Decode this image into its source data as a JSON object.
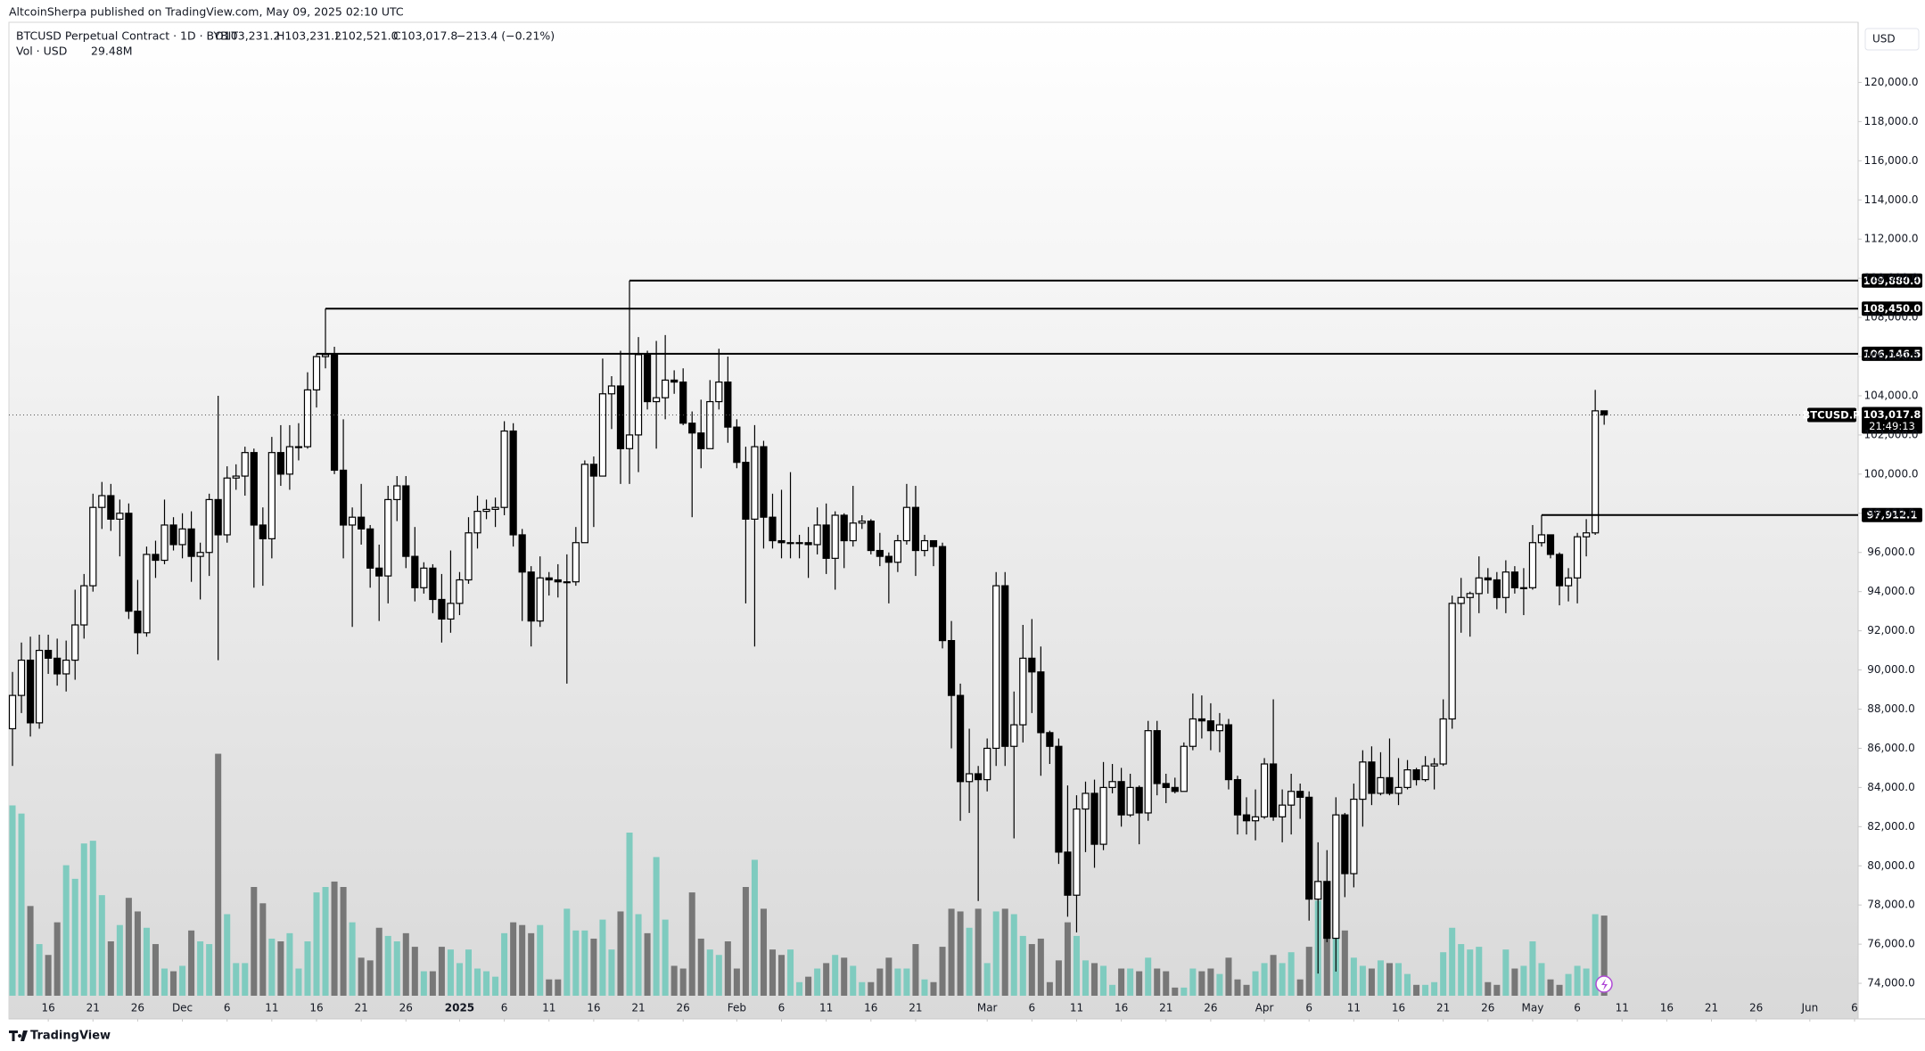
{
  "chart_data": {
    "type": "candlestick",
    "title": "AltcoinSherpa published on TradingView.com, May 09, 2025 02:10 UTC",
    "symbol": "BTCUSD Perpetual Contract · 1D · BYBIT",
    "ohlc_labels": [
      "O103,231.2",
      "H103,231.2",
      "L102,521.0",
      "C103,017.8",
      "−213.4 (−0.21%)"
    ],
    "currency": "USD",
    "brand": "TradingView",
    "grid": false,
    "up_color": "#ffffff",
    "down_color": "#000000",
    "wick_color": "#000000",
    "xlim": [
      -0.4,
      206.4
    ],
    "ylim": [
      73230,
      123070
    ],
    "xticks": [
      {
        "value": 4,
        "label": "16"
      },
      {
        "value": 9,
        "label": "21"
      },
      {
        "value": 14,
        "label": "26"
      },
      {
        "value": 19,
        "label": "Dec"
      },
      {
        "value": 24,
        "label": "6"
      },
      {
        "value": 29,
        "label": "11"
      },
      {
        "value": 34,
        "label": "16"
      },
      {
        "value": 39,
        "label": "21"
      },
      {
        "value": 44,
        "label": "26"
      },
      {
        "value": 50,
        "label": "2025"
      },
      {
        "value": 55,
        "label": "6"
      },
      {
        "value": 60,
        "label": "11"
      },
      {
        "value": 65,
        "label": "16"
      },
      {
        "value": 70,
        "label": "21"
      },
      {
        "value": 75,
        "label": "26"
      },
      {
        "value": 81,
        "label": "Feb"
      },
      {
        "value": 86,
        "label": "6"
      },
      {
        "value": 91,
        "label": "11"
      },
      {
        "value": 96,
        "label": "16"
      },
      {
        "value": 101,
        "label": "21"
      },
      {
        "value": 109,
        "label": "Mar"
      },
      {
        "value": 114,
        "label": "6"
      },
      {
        "value": 119,
        "label": "11"
      },
      {
        "value": 124,
        "label": "16"
      },
      {
        "value": 129,
        "label": "21"
      },
      {
        "value": 134,
        "label": "26"
      },
      {
        "value": 140,
        "label": "Apr"
      },
      {
        "value": 145,
        "label": "6"
      },
      {
        "value": 150,
        "label": "11"
      },
      {
        "value": 155,
        "label": "16"
      },
      {
        "value": 160,
        "label": "21"
      },
      {
        "value": 165,
        "label": "26"
      },
      {
        "value": 170,
        "label": "May"
      },
      {
        "value": 175,
        "label": "6"
      },
      {
        "value": 180,
        "label": "11"
      },
      {
        "value": 185,
        "label": "16"
      },
      {
        "value": 190,
        "label": "21"
      },
      {
        "value": 195,
        "label": "26"
      },
      {
        "value": 201,
        "label": "Jun"
      },
      {
        "value": 206,
        "label": "6"
      }
    ],
    "yticks": [
      {
        "value": 74000,
        "label": "74,000.0"
      },
      {
        "value": 76000,
        "label": "76,000.0"
      },
      {
        "value": 78000,
        "label": "78,000.0"
      },
      {
        "value": 80000,
        "label": "80,000.0"
      },
      {
        "value": 82000,
        "label": "82,000.0"
      },
      {
        "value": 84000,
        "label": "84,000.0"
      },
      {
        "value": 86000,
        "label": "86,000.0"
      },
      {
        "value": 88000,
        "label": "88,000.0"
      },
      {
        "value": 90000,
        "label": "90,000.0"
      },
      {
        "value": 92000,
        "label": "92,000.0"
      },
      {
        "value": 94000,
        "label": "94,000.0"
      },
      {
        "value": 96000,
        "label": "96,000.0"
      },
      {
        "value": 98000,
        "label": "98,000.0"
      },
      {
        "value": 100000,
        "label": "100,000.0"
      },
      {
        "value": 102000,
        "label": "102,000.0"
      },
      {
        "value": 104000,
        "label": "104,000.0"
      },
      {
        "value": 106000,
        "label": "106,000.0"
      },
      {
        "value": 108000,
        "label": "108,000.0"
      },
      {
        "value": 110000,
        "label": "110,000.0"
      },
      {
        "value": 112000,
        "label": "112,000.0"
      },
      {
        "value": 114000,
        "label": "114,000.0"
      },
      {
        "value": 116000,
        "label": "116,000.0"
      },
      {
        "value": 118000,
        "label": "118,000.0"
      },
      {
        "value": 120000,
        "label": "120,000.0"
      }
    ],
    "levels": [
      {
        "value": 109880,
        "label": "109,880.0"
      },
      {
        "value": 108450,
        "label": "108,450.0"
      },
      {
        "value": 106146.5,
        "label": "106,146.5"
      },
      {
        "value": 97912.1,
        "label": "97,912.1"
      }
    ],
    "last_price": {
      "symbol": "BTCUSD.P",
      "value": 103017.8,
      "label": "103,017.8",
      "countdown": "21:49:13"
    },
    "open": [
      87000,
      88700,
      90500,
      87300,
      91000,
      90600,
      89800,
      90500,
      92300,
      94300,
      98300,
      98900,
      97700,
      98000,
      93000,
      91900,
      95900,
      95600,
      97400,
      96400,
      97200,
      95800,
      96000,
      98700,
      96900,
      99800,
      99900,
      101100,
      97400,
      96700,
      101100,
      100000,
      101400,
      101400,
      104300,
      106000,
      106100,
      100200,
      97400,
      97800,
      97200,
      95200,
      94800,
      98700,
      99400,
      95800,
      94200,
      95200,
      93600,
      92600,
      93400,
      94600,
      97000,
      98100,
      98200,
      98300,
      102200,
      96900,
      95000,
      92500,
      94700,
      94600,
      94500,
      94500,
      96500,
      100500,
      99900,
      104100,
      104500,
      101300,
      102000,
      106100,
      103700,
      103900,
      104800,
      104700,
      102600,
      102100,
      101300,
      103700,
      104700,
      102400,
      100600,
      97700,
      101400,
      97800,
      96600,
      96500,
      96500,
      96500,
      96400,
      97400,
      95700,
      97900,
      96600,
      97500,
      97600,
      96100,
      95800,
      95500,
      96600,
      98300,
      96100,
      96600,
      96300,
      91500,
      88700,
      84300,
      84700,
      84400,
      86000,
      94300,
      86100,
      87200,
      90600,
      89900,
      86800,
      86100,
      80700,
      78500,
      82900,
      83700,
      81100,
      84000,
      84300,
      82600,
      84000,
      82700,
      86900,
      84200,
      84000,
      83800,
      86100,
      87500,
      87400,
      86900,
      87200,
      84400,
      82600,
      82300,
      82500,
      85200,
      82500,
      83100,
      83800,
      83500,
      78300,
      79200,
      76300,
      82600,
      79600,
      83400,
      85300,
      83700,
      84500,
      83700,
      84000,
      84900,
      84400,
      85100,
      85200,
      87500,
      93400,
      93700,
      93900,
      94700,
      94600,
      93700,
      95000,
      94200,
      94200,
      96500,
      96900,
      95900,
      94300,
      94700,
      96800,
      97000,
      103231.2
    ],
    "high": [
      89900,
      91400,
      91700,
      91800,
      91800,
      91600,
      91500,
      94100,
      94900,
      99000,
      99600,
      99500,
      98700,
      98500,
      94600,
      96300,
      96600,
      98700,
      97800,
      98000,
      98100,
      96500,
      99000,
      104000,
      100400,
      100500,
      101400,
      101300,
      98300,
      101900,
      102500,
      102500,
      102600,
      105200,
      106146.5,
      108450,
      106500,
      102800,
      98300,
      99500,
      97400,
      96400,
      99400,
      99900,
      99900,
      97300,
      95500,
      95400,
      94900,
      96100,
      95000,
      97800,
      98900,
      98700,
      98800,
      102700,
      102600,
      97200,
      95300,
      95800,
      95000,
      95400,
      95900,
      97300,
      100700,
      100900,
      105900,
      105000,
      106300,
      109880,
      107000,
      106300,
      106800,
      107100,
      105300,
      105400,
      103200,
      103800,
      104800,
      106400,
      106000,
      102800,
      101400,
      102500,
      101700,
      99000,
      99200,
      100100,
      96900,
      97300,
      98300,
      98500,
      98100,
      98000,
      99400,
      97900,
      97700,
      97000,
      96000,
      96900,
      99500,
      99400,
      96900,
      96600,
      96500,
      92500,
      89300,
      87000,
      85100,
      86500,
      95000,
      95000,
      88900,
      92300,
      92600,
      91200,
      86900,
      86500,
      84100,
      83600,
      84300,
      84400,
      85300,
      85200,
      85000,
      84700,
      84100,
      87400,
      87400,
      84700,
      84500,
      86300,
      88800,
      88700,
      88300,
      87800,
      87500,
      84600,
      83500,
      83900,
      85500,
      88500,
      83900,
      84700,
      84200,
      83800,
      81200,
      80800,
      83500,
      82700,
      84200,
      85900,
      86100,
      85800,
      86500,
      85500,
      85400,
      85000,
      85600,
      85500,
      88500,
      93800,
      94700,
      94000,
      95800,
      95200,
      95000,
      95600,
      95300,
      95200,
      97400,
      97912.1,
      96900,
      96000,
      95200,
      97000,
      97700,
      104300,
      103231.2
    ],
    "low": [
      85100,
      87800,
      86600,
      87000,
      89800,
      89200,
      88900,
      89500,
      91600,
      94000,
      97200,
      97100,
      95800,
      92600,
      90800,
      91700,
      94700,
      95400,
      96100,
      95700,
      94500,
      93600,
      94800,
      90500,
      96500,
      99200,
      98900,
      94200,
      94300,
      95700,
      99400,
      99200,
      100700,
      101300,
      103400,
      105400,
      100000,
      95700,
      92200,
      96400,
      94200,
      92500,
      93400,
      97600,
      95200,
      93500,
      93900,
      92900,
      91400,
      91900,
      92800,
      94400,
      96200,
      97700,
      97300,
      97900,
      96300,
      92500,
      91200,
      92200,
      93800,
      93700,
      89300,
      94300,
      96500,
      97300,
      99900,
      102300,
      99500,
      99500,
      100100,
      103300,
      101300,
      102800,
      104100,
      102500,
      97800,
      100300,
      101300,
      103300,
      101600,
      100300,
      93400,
      91200,
      96200,
      96200,
      95700,
      95700,
      95700,
      94700,
      95900,
      94900,
      94100,
      95200,
      96300,
      97200,
      95900,
      95300,
      93400,
      95000,
      96400,
      94800,
      95800,
      95300,
      91100,
      86000,
      82300,
      82700,
      78200,
      83800,
      85100,
      85100,
      81400,
      86300,
      87800,
      84600,
      85200,
      80100,
      77400,
      76600,
      80700,
      79900,
      80800,
      83700,
      82000,
      82500,
      81100,
      82300,
      83600,
      83200,
      83700,
      83800,
      85900,
      86500,
      85900,
      85800,
      83900,
      81600,
      81600,
      81300,
      82400,
      82300,
      81200,
      81600,
      82400,
      77200,
      74500,
      76100,
      74600,
      78400,
      78900,
      82000,
      83100,
      83600,
      83600,
      83100,
      83900,
      84100,
      84300,
      83900,
      85100,
      87000,
      91900,
      91700,
      92900,
      93900,
      93100,
      92900,
      93900,
      92800,
      94100,
      96300,
      95700,
      93300,
      93500,
      93400,
      95800,
      96900,
      102521.0
    ],
    "close": [
      88700,
      90500,
      87300,
      91000,
      90600,
      89800,
      90500,
      92300,
      94300,
      98300,
      98900,
      97700,
      98000,
      93000,
      91900,
      95900,
      95600,
      97400,
      96400,
      97200,
      95800,
      96000,
      98700,
      96900,
      99800,
      99900,
      101100,
      97400,
      96700,
      101100,
      100000,
      101400,
      101400,
      104300,
      106000,
      106100,
      100200,
      97400,
      97800,
      97200,
      95200,
      94800,
      98700,
      99400,
      95800,
      94200,
      95200,
      93600,
      92600,
      93400,
      94600,
      97000,
      98100,
      98200,
      98300,
      102200,
      96900,
      95000,
      92500,
      94700,
      94600,
      94500,
      94500,
      96500,
      100500,
      99900,
      104100,
      104500,
      101300,
      102000,
      106100,
      103700,
      103900,
      104800,
      104700,
      102600,
      102100,
      101300,
      103700,
      104700,
      102400,
      100600,
      97700,
      101400,
      97800,
      96600,
      96500,
      96500,
      96500,
      96400,
      97400,
      95700,
      97900,
      96600,
      97500,
      97600,
      96100,
      95800,
      95500,
      96600,
      98300,
      96100,
      96600,
      96300,
      91500,
      88700,
      84300,
      84700,
      84400,
      86000,
      94300,
      86100,
      87200,
      90600,
      89900,
      86800,
      86100,
      80700,
      78500,
      82900,
      83700,
      81100,
      84000,
      84300,
      82600,
      84000,
      82700,
      86900,
      84200,
      84000,
      83800,
      86100,
      87500,
      87400,
      86900,
      87200,
      84400,
      82600,
      82300,
      82500,
      85200,
      82500,
      83100,
      83800,
      83500,
      78300,
      79200,
      76300,
      82600,
      79600,
      83400,
      85300,
      83700,
      84500,
      83700,
      84000,
      84900,
      84400,
      85100,
      85200,
      87500,
      93400,
      93700,
      93900,
      94700,
      94600,
      93700,
      95000,
      94200,
      94200,
      96500,
      96900,
      95900,
      94300,
      94700,
      96800,
      97000,
      103231.2,
      103017.8
    ],
    "volume": {
      "name": "Vol · USD",
      "legend_label": "29.48M",
      "up_color": "#7fcbbf",
      "down_color": "#777777",
      "values": [
        70,
        67,
        33,
        19,
        15,
        27,
        48,
        43,
        56,
        57,
        37,
        20,
        26,
        36,
        31,
        25,
        19,
        10,
        9,
        11,
        24,
        20,
        19,
        89,
        30,
        12,
        12,
        40,
        34,
        21,
        20,
        23,
        10,
        20,
        38,
        40,
        42,
        40,
        27,
        14,
        13,
        25,
        22,
        20,
        23,
        18,
        9,
        9,
        18,
        17,
        12,
        17,
        10,
        9,
        7,
        23,
        27,
        26,
        23,
        26,
        6,
        6,
        32,
        24,
        24,
        21,
        28,
        17,
        31,
        60,
        30,
        23,
        51,
        28,
        11,
        10,
        38,
        21,
        17,
        15,
        20,
        10,
        40,
        50,
        32,
        17,
        15,
        17,
        5,
        7,
        10,
        12,
        15,
        14,
        11,
        5,
        5,
        10,
        14,
        10,
        10,
        19,
        6,
        5,
        18,
        32,
        31,
        25,
        32,
        12,
        31,
        32,
        30,
        22,
        19,
        21,
        5,
        13,
        27,
        22,
        13,
        12,
        11,
        4,
        10,
        10,
        9,
        14,
        10,
        9,
        3,
        3,
        10,
        9,
        10,
        8,
        14,
        6,
        4,
        9,
        12,
        15,
        12,
        16,
        6,
        18,
        35,
        27,
        38,
        24,
        14,
        11,
        10,
        13,
        12,
        12,
        8,
        4,
        4,
        5,
        16,
        25,
        19,
        17,
        18,
        5,
        4,
        17,
        10,
        11,
        20,
        12,
        6,
        4,
        8,
        11,
        10,
        30,
        29.48
      ]
    }
  }
}
